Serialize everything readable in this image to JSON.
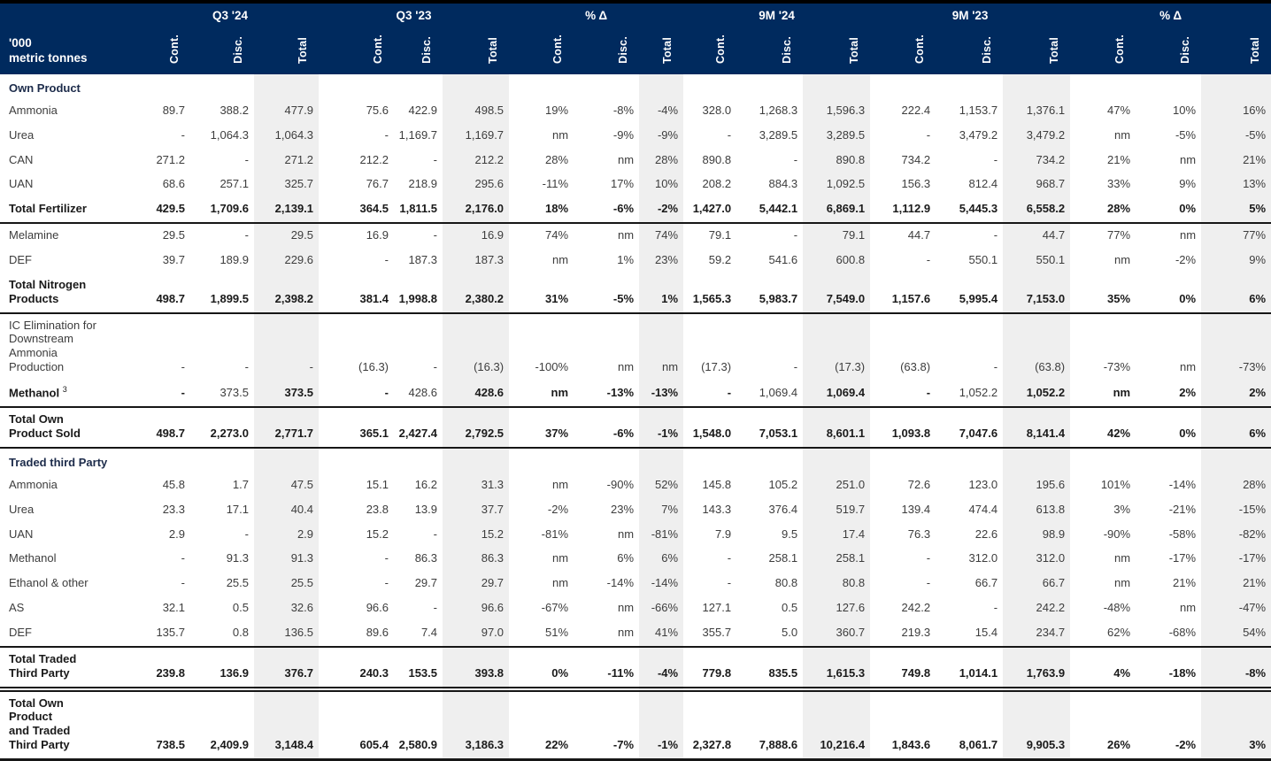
{
  "unit_label": "'000\nmetric tonnes",
  "colors": {
    "header_bg": "#002A5E",
    "band": "#efefef",
    "rule": "#161616",
    "header_text": "#ffffff"
  },
  "column_groups": [
    {
      "label": "Q3 '24",
      "cols": [
        "Cont.",
        "Disc.",
        "Total"
      ]
    },
    {
      "label": "Q3 '23",
      "cols": [
        "Cont.",
        "Disc.",
        "Total"
      ]
    },
    {
      "label": "% Δ",
      "cols": [
        "Cont.",
        "Disc.",
        "Total"
      ]
    },
    {
      "label": "9M '24",
      "cols": [
        "Cont.",
        "Disc.",
        "Total"
      ]
    },
    {
      "label": "9M '23",
      "cols": [
        "Cont.",
        "Disc.",
        "Total"
      ]
    },
    {
      "label": "% Δ",
      "cols": [
        "Cont.",
        "Disc.",
        "Total"
      ]
    }
  ],
  "rows": [
    {
      "type": "section",
      "label": "Own Product"
    },
    {
      "type": "data",
      "label": "Ammonia",
      "cells": [
        "89.7",
        "388.2",
        "477.9",
        "75.6",
        "422.9",
        "498.5",
        "19%",
        "-8%",
        "-4%",
        "328.0",
        "1,268.3",
        "1,596.3",
        "222.4",
        "1,153.7",
        "1,376.1",
        "47%",
        "10%",
        "16%"
      ]
    },
    {
      "type": "data",
      "label": "Urea",
      "cells": [
        "-",
        "1,064.3",
        "1,064.3",
        "-",
        "1,169.7",
        "1,169.7",
        "nm",
        "-9%",
        "-9%",
        "-",
        "3,289.5",
        "3,289.5",
        "-",
        "3,479.2",
        "3,479.2",
        "nm",
        "-5%",
        "-5%"
      ]
    },
    {
      "type": "data",
      "label": "CAN",
      "cells": [
        "271.2",
        "-",
        "271.2",
        "212.2",
        "-",
        "212.2",
        "28%",
        "nm",
        "28%",
        "890.8",
        "-",
        "890.8",
        "734.2",
        "-",
        "734.2",
        "21%",
        "nm",
        "21%"
      ]
    },
    {
      "type": "data",
      "label": "UAN",
      "cells": [
        "68.6",
        "257.1",
        "325.7",
        "76.7",
        "218.9",
        "295.6",
        "-11%",
        "17%",
        "10%",
        "208.2",
        "884.3",
        "1,092.5",
        "156.3",
        "812.4",
        "968.7",
        "33%",
        "9%",
        "13%"
      ]
    },
    {
      "type": "total",
      "label": "Total Fertilizer",
      "rule": "single",
      "cells": [
        "429.5",
        "1,709.6",
        "2,139.1",
        "364.5",
        "1,811.5",
        "2,176.0",
        "18%",
        "-6%",
        "-2%",
        "1,427.0",
        "5,442.1",
        "6,869.1",
        "1,112.9",
        "5,445.3",
        "6,558.2",
        "28%",
        "0%",
        "5%"
      ]
    },
    {
      "type": "data",
      "label": "Melamine",
      "cells": [
        "29.5",
        "-",
        "29.5",
        "16.9",
        "-",
        "16.9",
        "74%",
        "nm",
        "74%",
        "79.1",
        "-",
        "79.1",
        "44.7",
        "-",
        "44.7",
        "77%",
        "nm",
        "77%"
      ]
    },
    {
      "type": "data",
      "label": "DEF",
      "cells": [
        "39.7",
        "189.9",
        "229.6",
        "-",
        "187.3",
        "187.3",
        "nm",
        "1%",
        "23%",
        "59.2",
        "541.6",
        "600.8",
        "-",
        "550.1",
        "550.1",
        "nm",
        "-2%",
        "9%"
      ]
    },
    {
      "type": "total",
      "label": "Total Nitrogen\nProducts",
      "rule": "single",
      "cells": [
        "498.7",
        "1,899.5",
        "2,398.2",
        "381.4",
        "1,998.8",
        "2,380.2",
        "31%",
        "-5%",
        "1%",
        "1,565.3",
        "5,983.7",
        "7,549.0",
        "1,157.6",
        "5,995.4",
        "7,153.0",
        "35%",
        "0%",
        "6%"
      ]
    },
    {
      "type": "data",
      "label": "IC Elimination for\nDownstream\nAmmonia\nProduction",
      "cells": [
        "-",
        "-",
        "-",
        "(16.3)",
        "-",
        "(16.3)",
        "-100%",
        "nm",
        "nm",
        "(17.3)",
        "-",
        "(17.3)",
        "(63.8)",
        "-",
        "(63.8)",
        "-73%",
        "nm",
        "-73%"
      ]
    },
    {
      "type": "total",
      "label": "Methanol",
      "sup": "3",
      "rule": "single",
      "regular_cells": [
        1,
        4,
        10,
        13
      ],
      "cells": [
        "-",
        "373.5",
        "373.5",
        "-",
        "428.6",
        "428.6",
        "nm",
        "-13%",
        "-13%",
        "-",
        "1,069.4",
        "1,069.4",
        "-",
        "1,052.2",
        "1,052.2",
        "nm",
        "2%",
        "2%"
      ]
    },
    {
      "type": "total",
      "label": "Total Own\nProduct Sold",
      "rule": "single",
      "cells": [
        "498.7",
        "2,273.0",
        "2,771.7",
        "365.1",
        "2,427.4",
        "2,792.5",
        "37%",
        "-6%",
        "-1%",
        "1,548.0",
        "7,053.1",
        "8,601.1",
        "1,093.8",
        "7,047.6",
        "8,141.4",
        "42%",
        "0%",
        "6%"
      ]
    },
    {
      "type": "section",
      "label": "Traded third Party"
    },
    {
      "type": "data",
      "label": "Ammonia",
      "cells": [
        "45.8",
        "1.7",
        "47.5",
        "15.1",
        "16.2",
        "31.3",
        "nm",
        "-90%",
        "52%",
        "145.8",
        "105.2",
        "251.0",
        "72.6",
        "123.0",
        "195.6",
        "101%",
        "-14%",
        "28%"
      ]
    },
    {
      "type": "data",
      "label": "Urea",
      "cells": [
        "23.3",
        "17.1",
        "40.4",
        "23.8",
        "13.9",
        "37.7",
        "-2%",
        "23%",
        "7%",
        "143.3",
        "376.4",
        "519.7",
        "139.4",
        "474.4",
        "613.8",
        "3%",
        "-21%",
        "-15%"
      ]
    },
    {
      "type": "data",
      "label": "UAN",
      "cells": [
        "2.9",
        "-",
        "2.9",
        "15.2",
        "-",
        "15.2",
        "-81%",
        "nm",
        "-81%",
        "7.9",
        "9.5",
        "17.4",
        "76.3",
        "22.6",
        "98.9",
        "-90%",
        "-58%",
        "-82%"
      ]
    },
    {
      "type": "data",
      "label": "Methanol",
      "cells": [
        "-",
        "91.3",
        "91.3",
        "-",
        "86.3",
        "86.3",
        "nm",
        "6%",
        "6%",
        "-",
        "258.1",
        "258.1",
        "-",
        "312.0",
        "312.0",
        "nm",
        "-17%",
        "-17%"
      ]
    },
    {
      "type": "data",
      "label": "Ethanol & other",
      "cells": [
        "-",
        "25.5",
        "25.5",
        "-",
        "29.7",
        "29.7",
        "nm",
        "-14%",
        "-14%",
        "-",
        "80.8",
        "80.8",
        "-",
        "66.7",
        "66.7",
        "nm",
        "21%",
        "21%"
      ]
    },
    {
      "type": "data",
      "label": "AS",
      "cells": [
        "32.1",
        "0.5",
        "32.6",
        "96.6",
        "-",
        "96.6",
        "-67%",
        "nm",
        "-66%",
        "127.1",
        "0.5",
        "127.6",
        "242.2",
        "-",
        "242.2",
        "-48%",
        "nm",
        "-47%"
      ]
    },
    {
      "type": "data",
      "label": "DEF",
      "rule": "single",
      "cells": [
        "135.7",
        "0.8",
        "136.5",
        "89.6",
        "7.4",
        "97.0",
        "51%",
        "nm",
        "41%",
        "355.7",
        "5.0",
        "360.7",
        "219.3",
        "15.4",
        "234.7",
        "62%",
        "-68%",
        "54%"
      ]
    },
    {
      "type": "total",
      "label": "Total Traded\nThird Party",
      "rule": "double",
      "cells": [
        "239.8",
        "136.9",
        "376.7",
        "240.3",
        "153.5",
        "393.8",
        "0%",
        "-11%",
        "-4%",
        "779.8",
        "835.5",
        "1,615.3",
        "749.8",
        "1,014.1",
        "1,763.9",
        "4%",
        "-18%",
        "-8%"
      ]
    },
    {
      "type": "total",
      "label": "Total Own\nProduct\nand Traded\nThird Party",
      "rule": "thick",
      "cells": [
        "738.5",
        "2,409.9",
        "3,148.4",
        "605.4",
        "2,580.9",
        "3,186.3",
        "22%",
        "-7%",
        "-1%",
        "2,327.8",
        "7,888.6",
        "10,216.4",
        "1,843.6",
        "8,061.7",
        "9,905.3",
        "26%",
        "-2%",
        "3%"
      ]
    }
  ]
}
